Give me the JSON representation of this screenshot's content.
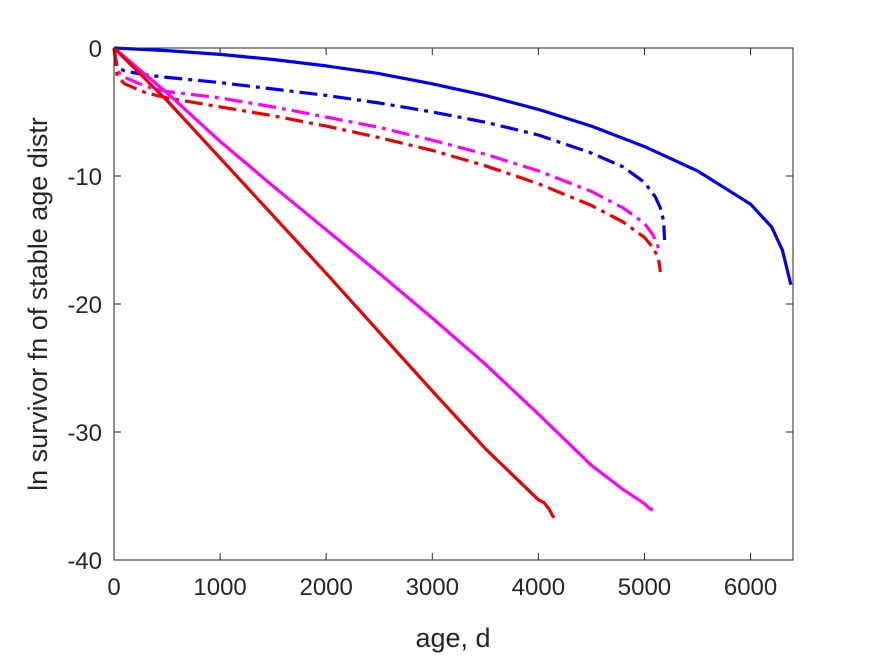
{
  "chart_data": {
    "type": "line",
    "title": "",
    "xlabel": "age, d",
    "ylabel": "ln survivor fn of stable age distr",
    "xlim": [
      0,
      6400
    ],
    "ylim": [
      -40,
      0
    ],
    "xticks": [
      0,
      1000,
      2000,
      3000,
      4000,
      5000,
      6000
    ],
    "yticks": [
      0,
      -10,
      -20,
      -30,
      -40
    ],
    "grid": false,
    "legend": "none",
    "series": [
      {
        "color": "#0000ee",
        "style": "solid",
        "x": [
          0,
          500,
          1000,
          1500,
          2000,
          2500,
          3000,
          3500,
          4000,
          4500,
          5000,
          5500,
          6000,
          6200,
          6300,
          6380
        ],
        "y": [
          0,
          -0.2,
          -0.5,
          -0.9,
          -1.4,
          -2.0,
          -2.8,
          -3.7,
          -4.8,
          -6.1,
          -7.7,
          -9.6,
          -12.2,
          -14.0,
          -15.8,
          -18.5
        ]
      },
      {
        "color": "#0000ee",
        "style": "dashdot",
        "x": [
          0,
          30,
          100,
          300,
          500,
          1000,
          1500,
          2000,
          2500,
          3000,
          3500,
          4000,
          4500,
          4800,
          5000,
          5100,
          5150,
          5180,
          5190
        ],
        "y": [
          0,
          -1.5,
          -1.8,
          -2.1,
          -2.3,
          -2.7,
          -3.2,
          -3.7,
          -4.3,
          -5.0,
          -5.8,
          -6.8,
          -8.2,
          -9.3,
          -10.5,
          -11.6,
          -12.5,
          -13.5,
          -15.0
        ]
      },
      {
        "color": "#ff00ff",
        "style": "dashdot",
        "x": [
          0,
          30,
          100,
          300,
          500,
          1000,
          1500,
          2000,
          2500,
          3000,
          3500,
          4000,
          4500,
          4800,
          5000,
          5080,
          5120,
          5140
        ],
        "y": [
          0,
          -1.8,
          -2.3,
          -3.0,
          -3.4,
          -3.9,
          -4.6,
          -5.4,
          -6.2,
          -7.2,
          -8.3,
          -9.6,
          -11.2,
          -12.5,
          -13.7,
          -14.6,
          -15.3,
          -16.0
        ]
      },
      {
        "color": "#ee0000",
        "style": "dashdot",
        "x": [
          0,
          30,
          100,
          300,
          500,
          1000,
          1500,
          2000,
          2500,
          3000,
          3500,
          4000,
          4500,
          4800,
          5000,
          5080,
          5130,
          5150
        ],
        "y": [
          0,
          -2.2,
          -2.8,
          -3.5,
          -3.9,
          -4.6,
          -5.3,
          -6.1,
          -7.0,
          -8.0,
          -9.2,
          -10.6,
          -12.3,
          -13.6,
          -14.8,
          -15.6,
          -16.4,
          -17.5
        ]
      },
      {
        "color": "#ff00ff",
        "style": "solid",
        "x": [
          0,
          500,
          1000,
          1500,
          2000,
          2500,
          3000,
          3500,
          4000,
          4500,
          4800,
          5000,
          5050,
          5080
        ],
        "y": [
          0,
          -3.5,
          -7.3,
          -10.8,
          -14.2,
          -17.6,
          -21.1,
          -24.7,
          -28.6,
          -32.6,
          -34.5,
          -35.6,
          -36.0,
          -36.1
        ]
      },
      {
        "color": "#ee0000",
        "style": "solid",
        "x": [
          0,
          500,
          1000,
          1500,
          2000,
          2500,
          3000,
          3500,
          4000,
          4050,
          4100,
          4130,
          4150
        ],
        "y": [
          0,
          -4.1,
          -8.6,
          -13.1,
          -17.6,
          -22.2,
          -26.8,
          -31.3,
          -35.3,
          -35.5,
          -36.0,
          -36.5,
          -36.7
        ]
      }
    ]
  }
}
